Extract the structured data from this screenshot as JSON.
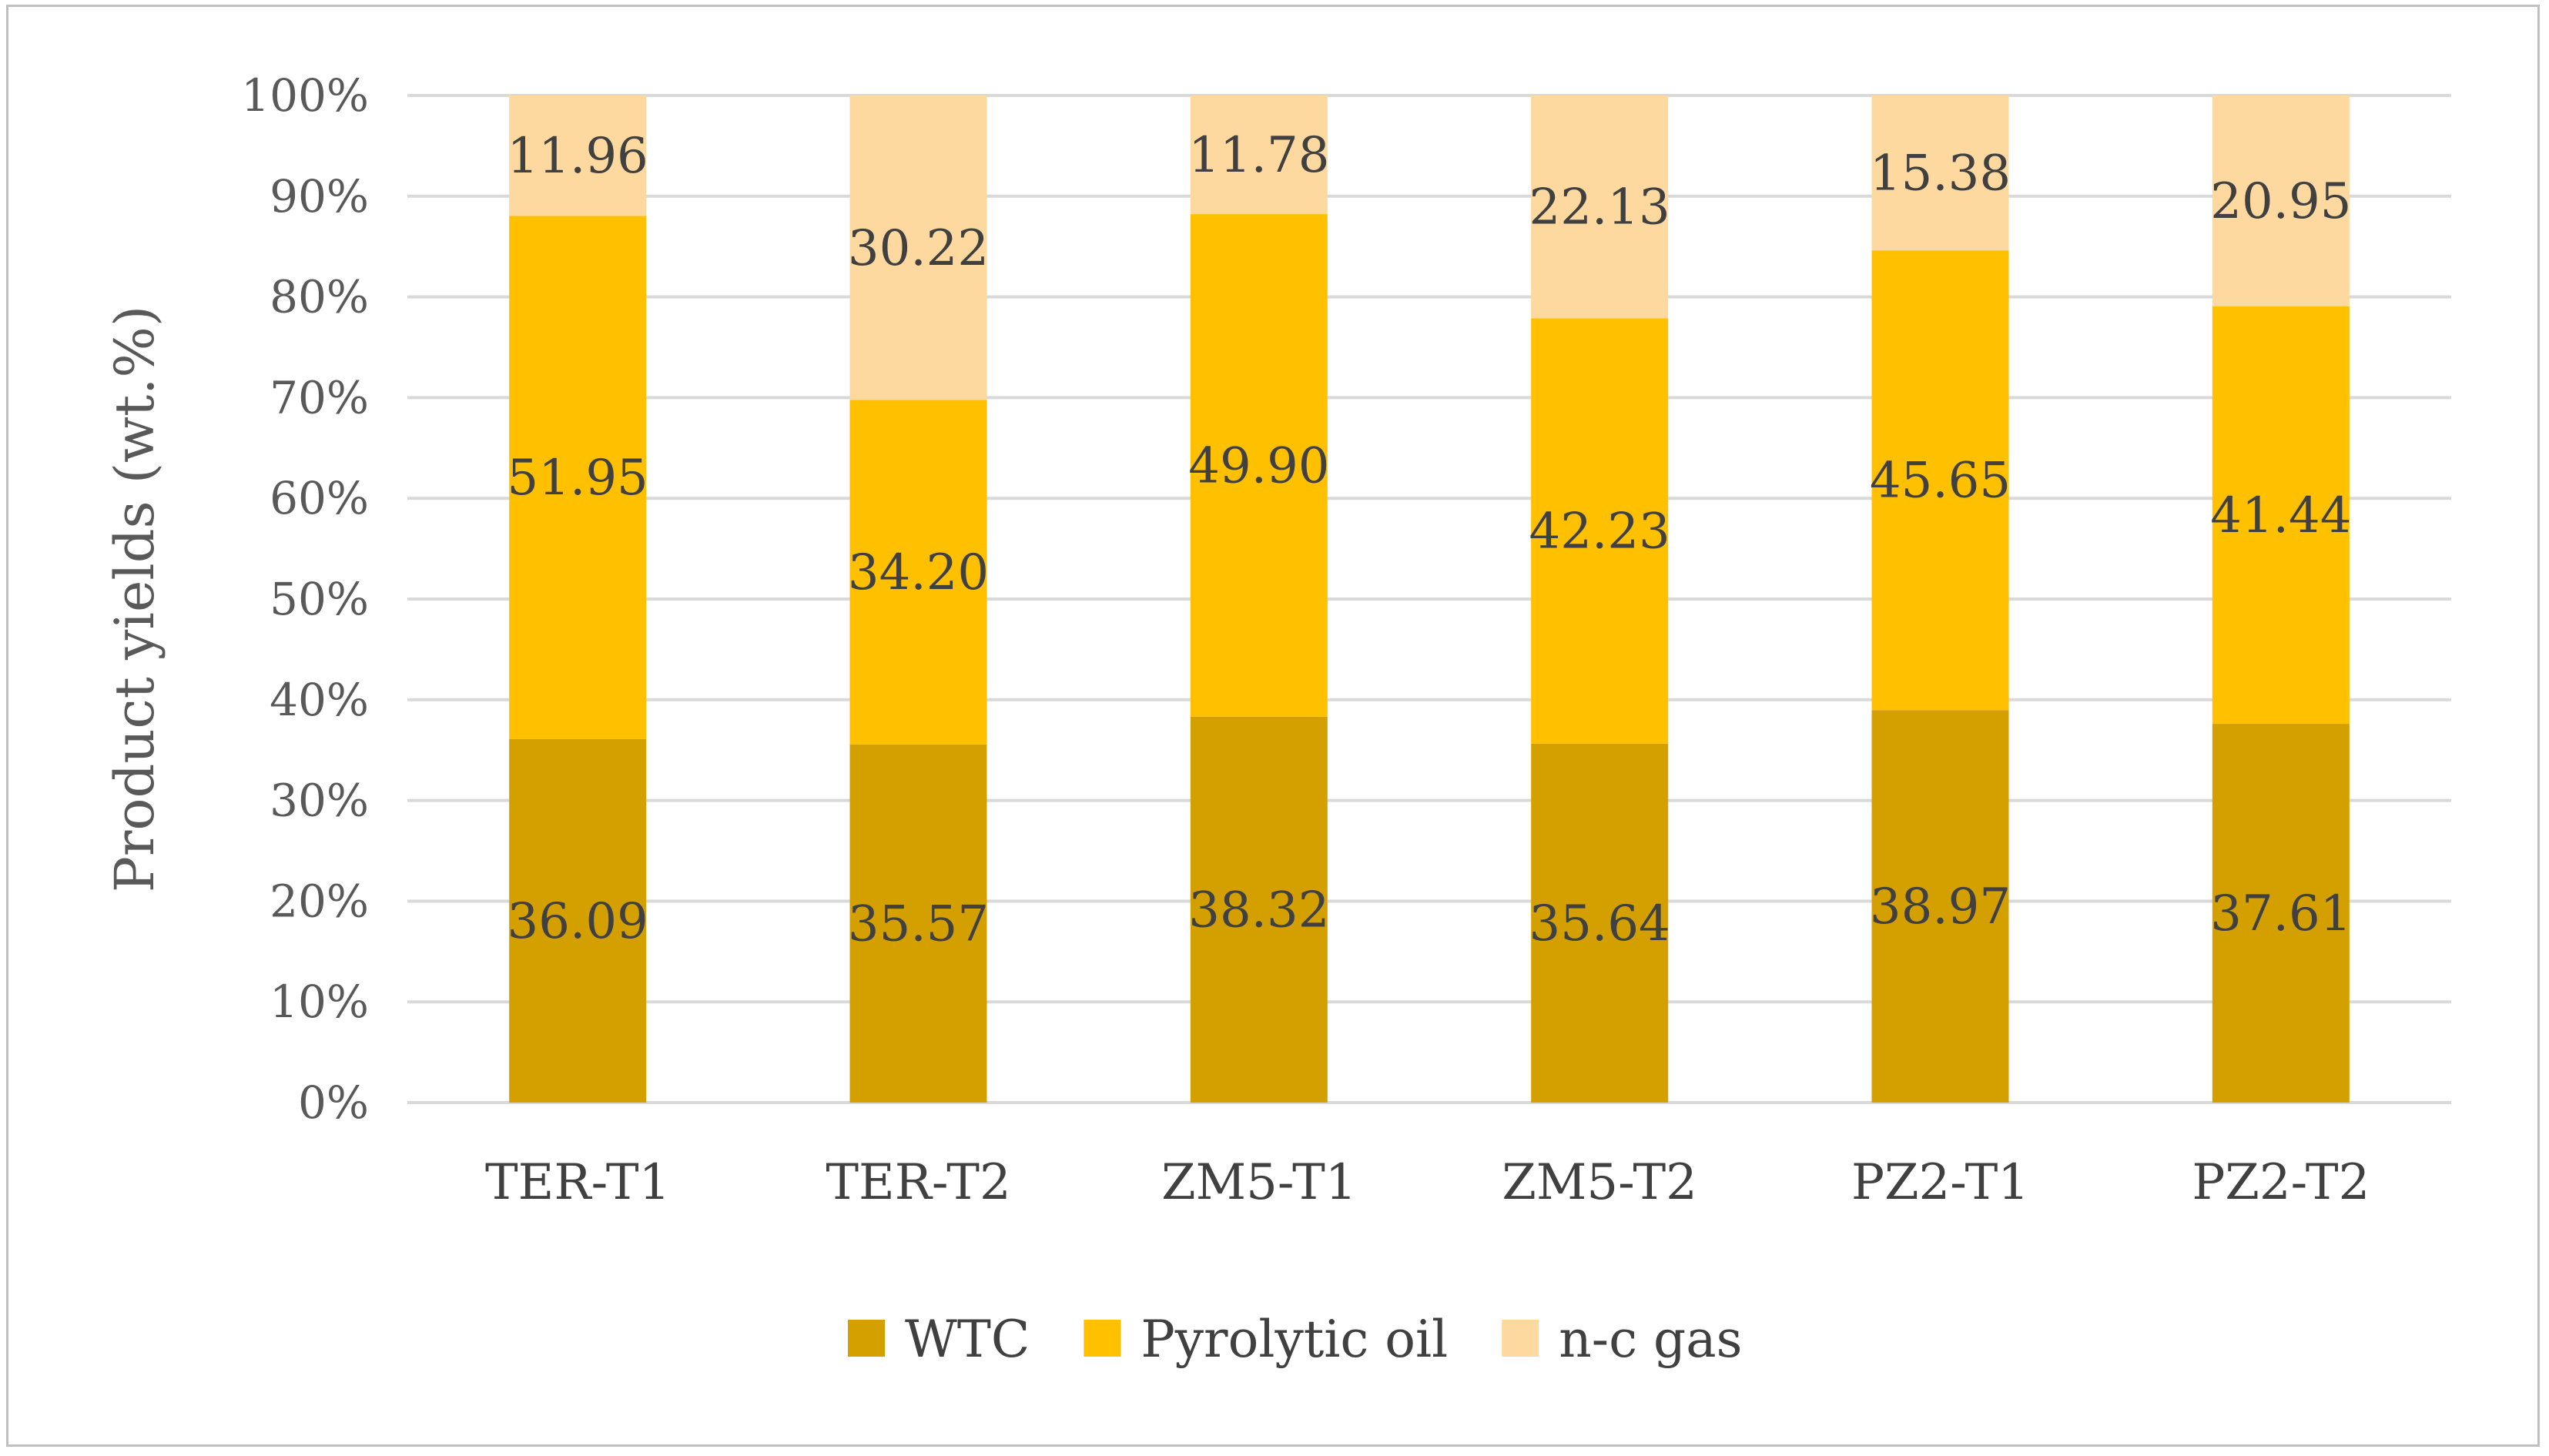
{
  "chart_data": {
    "type": "bar",
    "stacked": true,
    "categories": [
      "TER-T1",
      "TER-T2",
      "ZM5-T1",
      "ZM5-T2",
      "PZ2-T1",
      "PZ2-T2"
    ],
    "series": [
      {
        "name": "WTC",
        "color": "#D4A000",
        "values": [
          36.09,
          35.57,
          38.32,
          35.64,
          38.97,
          37.61
        ],
        "labels": [
          "36.09",
          "35.57",
          "38.32",
          "35.64",
          "38.97",
          "37.61"
        ]
      },
      {
        "name": "Pyrolytic oil",
        "color": "#FFC000",
        "values": [
          51.95,
          34.2,
          49.9,
          42.23,
          45.65,
          41.44
        ],
        "labels": [
          "51.95",
          "34.20",
          "49.90",
          "42.23",
          "45.65",
          "41.44"
        ]
      },
      {
        "name": "n-c gas",
        "color": "#FDD9A0",
        "values": [
          11.96,
          30.22,
          11.78,
          22.13,
          15.38,
          20.95
        ],
        "labels": [
          "11.96",
          "30.22",
          "11.78",
          "22.13",
          "15.38",
          "20.95"
        ]
      }
    ],
    "ylabel": "Product yields (wt.%)",
    "xlabel": "",
    "ylim": [
      0,
      100
    ],
    "yticks": [
      "0%",
      "10%",
      "20%",
      "30%",
      "40%",
      "50%",
      "60%",
      "70%",
      "80%",
      "90%",
      "100%"
    ],
    "grid": true,
    "legend_position": "bottom"
  }
}
